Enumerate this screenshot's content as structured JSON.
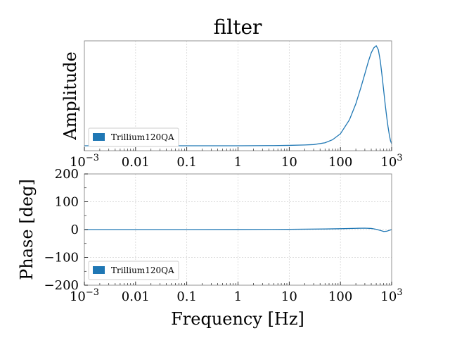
{
  "chart_data": [
    {
      "type": "line",
      "title": "filter",
      "ylabel": "Amplitude",
      "xscale": "log",
      "xlim": [
        0.001,
        1000
      ],
      "xticks": [
        {
          "value": 0.001,
          "label": "10",
          "sup": "−3"
        },
        {
          "value": 0.01,
          "label": "0.01"
        },
        {
          "value": 0.1,
          "label": "0.1"
        },
        {
          "value": 1,
          "label": "1"
        },
        {
          "value": 10,
          "label": "10"
        },
        {
          "value": 100,
          "label": "100"
        },
        {
          "value": 1000,
          "label": "10",
          "sup": "3"
        }
      ],
      "yticks_visible": false,
      "grid": true,
      "legend": {
        "placement": "lower-left",
        "entries": [
          "Trillium120QA"
        ]
      },
      "series": [
        {
          "name": "Trillium120QA",
          "color": "#1f77b4",
          "x": [
            0.001,
            0.01,
            0.1,
            1,
            5,
            10,
            20,
            30,
            50,
            70,
            100,
            150,
            200,
            250,
            300,
            350,
            400,
            450,
            500,
            550,
            600,
            650,
            700,
            750,
            800,
            850,
            900,
            950,
            1000
          ],
          "y": [
            0.0,
            0.0,
            0.0,
            0.0,
            0.002,
            0.004,
            0.008,
            0.012,
            0.03,
            0.06,
            0.12,
            0.26,
            0.42,
            0.58,
            0.72,
            0.84,
            0.93,
            0.98,
            1.0,
            0.96,
            0.85,
            0.7,
            0.55,
            0.41,
            0.29,
            0.19,
            0.11,
            0.05,
            0.02
          ]
        }
      ]
    },
    {
      "type": "line",
      "xlabel": "Frequency [Hz]",
      "ylabel": "Phase [deg]",
      "xscale": "log",
      "xlim": [
        0.001,
        1000
      ],
      "ylim": [
        -200,
        200
      ],
      "xticks": [
        {
          "value": 0.001,
          "label": "10",
          "sup": "−3"
        },
        {
          "value": 0.01,
          "label": "0.01"
        },
        {
          "value": 0.1,
          "label": "0.1"
        },
        {
          "value": 1,
          "label": "1"
        },
        {
          "value": 10,
          "label": "10"
        },
        {
          "value": 100,
          "label": "100"
        },
        {
          "value": 1000,
          "label": "10",
          "sup": "3"
        }
      ],
      "yticks": [
        {
          "value": 200,
          "label": "200"
        },
        {
          "value": 100,
          "label": "100"
        },
        {
          "value": 0,
          "label": "0"
        },
        {
          "value": -100,
          "label": "−100"
        },
        {
          "value": -200,
          "label": "−200"
        }
      ],
      "grid": true,
      "legend": {
        "placement": "lower-left",
        "entries": [
          "Trillium120QA"
        ]
      },
      "series": [
        {
          "name": "Trillium120QA",
          "color": "#1f77b4",
          "x": [
            0.001,
            0.01,
            0.1,
            1,
            10,
            50,
            100,
            200,
            300,
            400,
            500,
            600,
            700,
            800,
            900,
            1000
          ],
          "y": [
            0,
            0,
            0,
            0.2,
            0.8,
            2,
            3,
            4.5,
            5,
            4,
            1,
            -3,
            -7,
            -6,
            -3,
            0
          ]
        }
      ]
    }
  ]
}
